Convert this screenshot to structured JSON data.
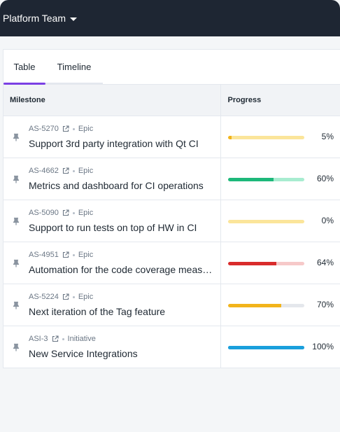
{
  "header": {
    "team_name": "Platform Team"
  },
  "tabs": [
    {
      "label": "Table",
      "active": true
    },
    {
      "label": "Timeline",
      "active": false
    }
  ],
  "table": {
    "columns": [
      "Milestone",
      "Progress"
    ],
    "rows": [
      {
        "key": "AS-5270",
        "type": "Epic",
        "title": "Support 3rd party integration with Qt CI",
        "progress": 5,
        "progress_text": "5%",
        "fill_color": "#f2b41b",
        "track_color": "#fbe59a"
      },
      {
        "key": "AS-4662",
        "type": "Epic",
        "title": "Metrics and dashboard for CI operations",
        "progress": 60,
        "progress_text": "60%",
        "fill_color": "#1db87a",
        "track_color": "#a8ecd0"
      },
      {
        "key": "AS-5090",
        "type": "Epic",
        "title": "Support to run tests on top of HW in CI",
        "progress": 0,
        "progress_text": "0%",
        "fill_color": "#f2b41b",
        "track_color": "#fbe59a"
      },
      {
        "key": "AS-4951",
        "type": "Epic",
        "title": "Automation for the code coverage measurement",
        "progress": 64,
        "progress_text": "64%",
        "fill_color": "#d92b2b",
        "track_color": "#f6c9c9"
      },
      {
        "key": "AS-5224",
        "type": "Epic",
        "title": "Next iteration of the Tag feature",
        "progress": 70,
        "progress_text": "70%",
        "fill_color": "#f2b41b",
        "track_color": "#e4e7ec"
      },
      {
        "key": "ASI-3",
        "type": "Initiative",
        "title": "New Service Integrations",
        "progress": 100,
        "progress_text": "100%",
        "fill_color": "#1a9fdc",
        "track_color": "#1a9fdc"
      }
    ]
  },
  "icons": {
    "pin": "pin-icon",
    "external": "external-link-icon",
    "caret": "caret-down-icon"
  }
}
